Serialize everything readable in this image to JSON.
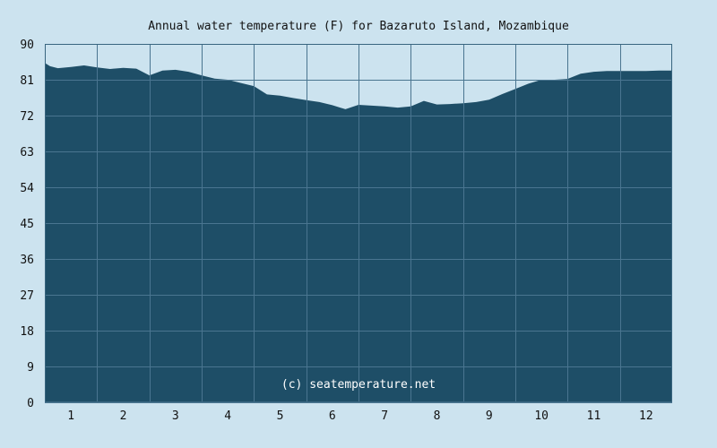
{
  "chart_data": {
    "type": "area",
    "title": "Annual water temperature (F) for Bazaruto Island, Mozambique",
    "xlabel": "",
    "ylabel": "",
    "unit": "F",
    "ylim": [
      0,
      90
    ],
    "y_ticks": [
      "0",
      "9",
      "18",
      "27",
      "36",
      "45",
      "54",
      "63",
      "72",
      "81",
      "90"
    ],
    "x_ticks": [
      "1",
      "2",
      "3",
      "4",
      "5",
      "6",
      "7",
      "8",
      "9",
      "10",
      "11",
      "12"
    ],
    "grid": true,
    "legend": "none",
    "watermark": "(c) seatemperature.net",
    "x_range": [
      0.5,
      12.5
    ],
    "series": [
      {
        "x": [
          0.5,
          0.6,
          0.75,
          1.0,
          1.25,
          1.5,
          1.75,
          2.0,
          2.25,
          2.5,
          2.75,
          3.0,
          3.25,
          3.5,
          3.75,
          4.0,
          4.25,
          4.5,
          4.75,
          5.0,
          5.25,
          5.5,
          5.75,
          6.0,
          6.25,
          6.5,
          6.75,
          7.0,
          7.25,
          7.5,
          7.75,
          8.0,
          8.25,
          8.5,
          8.75,
          9.0,
          9.25,
          9.5,
          9.75,
          10.0,
          10.25,
          10.5,
          10.75,
          11.0,
          11.25,
          11.5,
          11.75,
          12.0,
          12.25,
          12.5
        ],
        "values": [
          85.2,
          84.4,
          83.9,
          84.2,
          84.6,
          84.1,
          83.7,
          84.0,
          83.8,
          82.1,
          83.3,
          83.5,
          83.0,
          82.1,
          81.3,
          81.0,
          80.2,
          79.4,
          77.3,
          77.0,
          76.4,
          75.9,
          75.4,
          74.6,
          73.6,
          74.7,
          74.5,
          74.3,
          74.0,
          74.3,
          75.7,
          74.8,
          74.9,
          75.1,
          75.4,
          76.0,
          77.4,
          78.7,
          80.0,
          81.0,
          81.0,
          81.2,
          82.5,
          83.0,
          83.2,
          83.2,
          83.2,
          83.2,
          83.3,
          83.3
        ]
      }
    ],
    "colors": {
      "background": "#cce3ef",
      "area": "#1e4e67",
      "grid": "#4a7590",
      "frame": "#38657f",
      "text": "#111111",
      "watermark": "#ffffff"
    }
  }
}
